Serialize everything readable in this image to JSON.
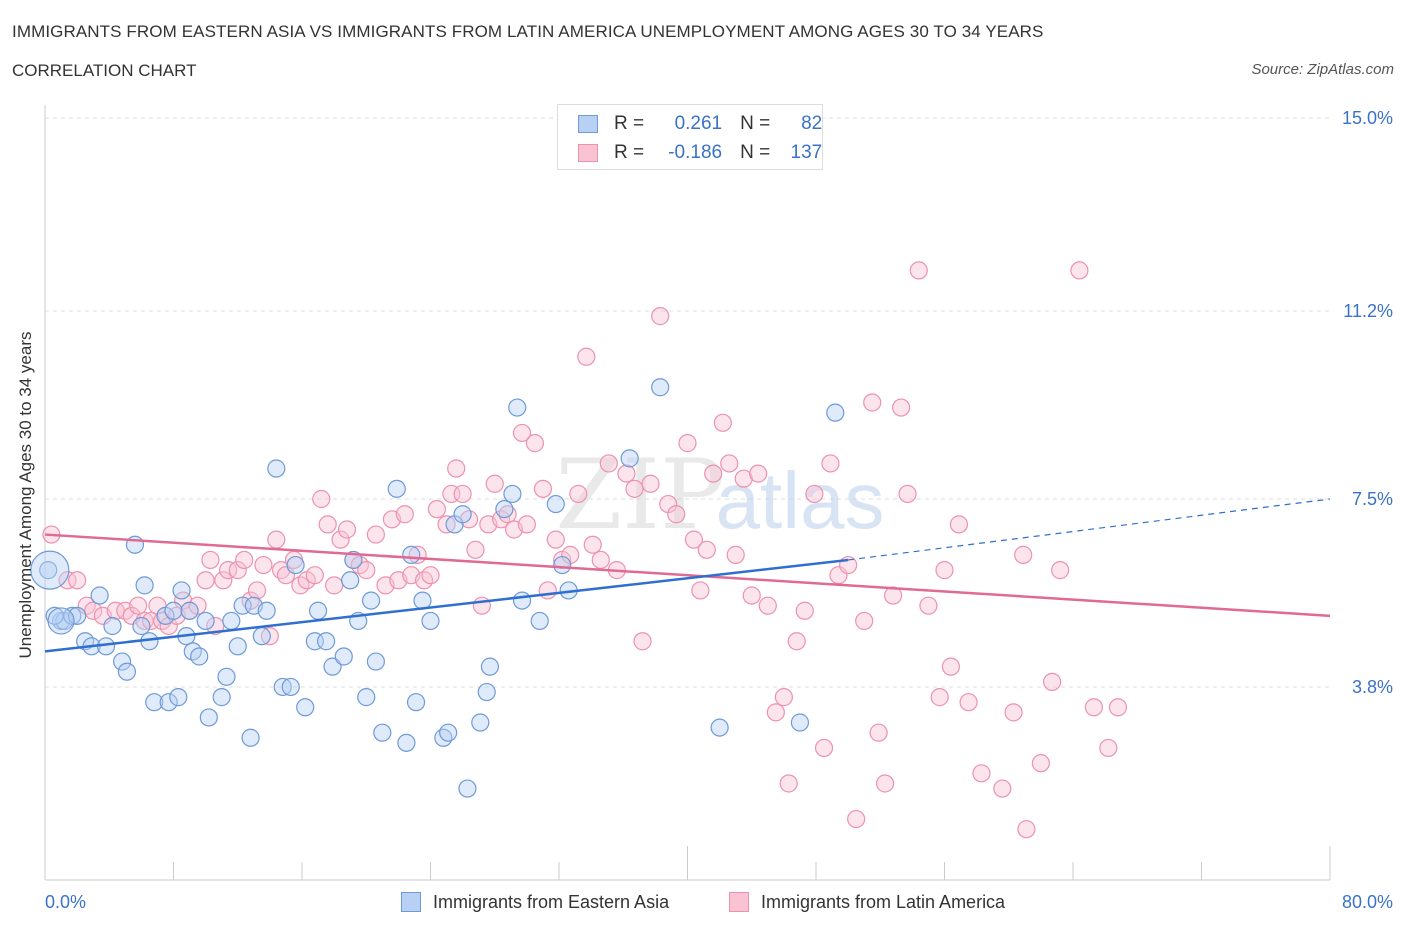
{
  "header": {
    "title": "IMMIGRANTS FROM EASTERN ASIA VS IMMIGRANTS FROM LATIN AMERICA UNEMPLOYMENT AMONG AGES 30 TO 34 YEARS",
    "subtitle": "CORRELATION CHART",
    "source": "Source: ZipAtlas.com"
  },
  "legend": {
    "rows": [
      {
        "r_label": "R =",
        "r_value": "0.261",
        "n_label": "N =",
        "n_value": "82"
      },
      {
        "r_label": "R =",
        "r_value": "-0.186",
        "n_label": "N =",
        "n_value": "137"
      }
    ]
  },
  "colors": {
    "blue_fill": "#b8d0f4",
    "blue_stroke": "#6e9ad8",
    "blue_line": "#2f6fcf",
    "pink_fill": "#f9c3d4",
    "pink_stroke": "#ec92ae",
    "pink_line": "#e06a94",
    "axis_text": "#3a72c8",
    "grid": "#dddddd"
  },
  "chart_data": {
    "type": "scatter",
    "xlabel": "",
    "ylabel": "Unemployment Among Ages 30 to 34 years",
    "xlim": [
      0,
      80
    ],
    "ylim": [
      0,
      15
    ],
    "x_tick_labels": [
      "0.0%",
      "80.0%"
    ],
    "y_ticks": [
      3.8,
      7.5,
      11.2,
      15.0
    ],
    "y_tick_labels": [
      "3.8%",
      "7.5%",
      "11.2%",
      "15.0%"
    ],
    "grid": "horizontal dashed",
    "watermark": {
      "zip": "ZIP",
      "atlas": "atlas"
    },
    "series": [
      {
        "name": "Immigrants from Eastern Asia",
        "trend": {
          "x": [
            0,
            50.0
          ],
          "y": [
            4.5,
            6.3
          ],
          "extended_x": [
            80,
            80
          ],
          "extended_y": [
            7.5,
            7.5
          ],
          "dashed_from": 50.0
        },
        "points": [
          [
            0.2,
            6.1
          ],
          [
            1.0,
            5.1
          ],
          [
            1.2,
            5.1
          ],
          [
            1.7,
            5.2
          ],
          [
            2.0,
            5.2
          ],
          [
            2.5,
            4.7
          ],
          [
            2.9,
            4.6
          ],
          [
            3.4,
            5.6
          ],
          [
            3.8,
            4.6
          ],
          [
            4.2,
            5.0
          ],
          [
            4.8,
            4.3
          ],
          [
            5.1,
            4.1
          ],
          [
            5.6,
            6.6
          ],
          [
            6.0,
            5.0
          ],
          [
            6.2,
            5.8
          ],
          [
            6.5,
            4.7
          ],
          [
            6.8,
            3.5
          ],
          [
            7.5,
            5.2
          ],
          [
            7.7,
            3.5
          ],
          [
            8.0,
            5.3
          ],
          [
            8.3,
            3.6
          ],
          [
            8.5,
            5.7
          ],
          [
            8.8,
            4.8
          ],
          [
            9.0,
            5.3
          ],
          [
            9.2,
            4.5
          ],
          [
            9.6,
            4.4
          ],
          [
            10.0,
            5.1
          ],
          [
            10.2,
            3.2
          ],
          [
            11.0,
            3.6
          ],
          [
            11.3,
            4.0
          ],
          [
            11.6,
            5.1
          ],
          [
            12.0,
            4.6
          ],
          [
            12.3,
            5.4
          ],
          [
            12.8,
            2.8
          ],
          [
            13.0,
            5.4
          ],
          [
            13.5,
            4.8
          ],
          [
            13.8,
            5.3
          ],
          [
            14.4,
            8.1
          ],
          [
            14.8,
            3.8
          ],
          [
            15.3,
            3.8
          ],
          [
            15.6,
            6.2
          ],
          [
            16.2,
            3.4
          ],
          [
            16.8,
            4.7
          ],
          [
            17.0,
            5.3
          ],
          [
            17.5,
            4.7
          ],
          [
            17.9,
            4.2
          ],
          [
            18.6,
            4.4
          ],
          [
            19.0,
            5.9
          ],
          [
            19.2,
            6.3
          ],
          [
            19.5,
            5.1
          ],
          [
            20.0,
            3.6
          ],
          [
            20.3,
            5.5
          ],
          [
            20.6,
            4.3
          ],
          [
            21.0,
            2.9
          ],
          [
            21.9,
            7.7
          ],
          [
            22.5,
            2.7
          ],
          [
            22.8,
            6.4
          ],
          [
            23.1,
            3.5
          ],
          [
            23.5,
            5.5
          ],
          [
            24.0,
            5.1
          ],
          [
            24.8,
            2.8
          ],
          [
            25.1,
            2.9
          ],
          [
            25.5,
            7.0
          ],
          [
            26.0,
            7.2
          ],
          [
            26.3,
            1.8
          ],
          [
            27.1,
            3.1
          ],
          [
            27.5,
            3.7
          ],
          [
            27.7,
            4.2
          ],
          [
            28.6,
            7.3
          ],
          [
            29.1,
            7.6
          ],
          [
            29.4,
            9.3
          ],
          [
            29.7,
            5.5
          ],
          [
            30.8,
            5.1
          ],
          [
            31.8,
            7.4
          ],
          [
            32.2,
            6.2
          ],
          [
            32.6,
            5.7
          ],
          [
            36.4,
            8.3
          ],
          [
            38.3,
            9.7
          ],
          [
            42.0,
            3.0
          ],
          [
            47.0,
            3.1
          ],
          [
            49.2,
            9.2
          ],
          [
            0.6,
            5.2
          ]
        ],
        "large_points": [
          [
            0.3,
            6.1
          ],
          [
            1.0,
            5.1
          ]
        ]
      },
      {
        "name": "Immigrants from Latin America",
        "trend": {
          "x": [
            0,
            80
          ],
          "y": [
            6.8,
            5.2
          ]
        },
        "points": [
          [
            0.4,
            6.8
          ],
          [
            1.4,
            5.9
          ],
          [
            2.0,
            5.9
          ],
          [
            2.6,
            5.4
          ],
          [
            3.0,
            5.3
          ],
          [
            3.6,
            5.2
          ],
          [
            4.4,
            5.3
          ],
          [
            5.0,
            5.3
          ],
          [
            5.4,
            5.2
          ],
          [
            5.8,
            5.4
          ],
          [
            6.2,
            5.1
          ],
          [
            6.6,
            5.1
          ],
          [
            7.0,
            5.4
          ],
          [
            7.3,
            5.1
          ],
          [
            7.7,
            5.0
          ],
          [
            8.2,
            5.2
          ],
          [
            8.6,
            5.5
          ],
          [
            9.0,
            5.3
          ],
          [
            9.5,
            5.4
          ],
          [
            10.0,
            5.9
          ],
          [
            10.3,
            6.3
          ],
          [
            10.6,
            5.0
          ],
          [
            11.1,
            5.9
          ],
          [
            11.4,
            6.1
          ],
          [
            12.0,
            6.1
          ],
          [
            12.4,
            6.3
          ],
          [
            12.8,
            5.5
          ],
          [
            13.2,
            5.7
          ],
          [
            13.6,
            6.2
          ],
          [
            14.0,
            4.8
          ],
          [
            14.4,
            6.7
          ],
          [
            14.7,
            6.1
          ],
          [
            15.0,
            6.0
          ],
          [
            15.5,
            6.3
          ],
          [
            15.9,
            5.8
          ],
          [
            16.3,
            5.9
          ],
          [
            16.8,
            6.0
          ],
          [
            17.2,
            7.5
          ],
          [
            17.6,
            7.0
          ],
          [
            18.0,
            5.8
          ],
          [
            18.4,
            6.7
          ],
          [
            18.8,
            6.9
          ],
          [
            19.2,
            6.3
          ],
          [
            19.6,
            6.2
          ],
          [
            20.0,
            6.1
          ],
          [
            20.6,
            6.8
          ],
          [
            21.2,
            5.8
          ],
          [
            21.6,
            7.1
          ],
          [
            22.0,
            5.9
          ],
          [
            22.4,
            7.2
          ],
          [
            22.8,
            6.0
          ],
          [
            23.2,
            6.4
          ],
          [
            23.6,
            5.9
          ],
          [
            24.0,
            6.0
          ],
          [
            24.4,
            7.3
          ],
          [
            25.0,
            7.0
          ],
          [
            25.3,
            7.6
          ],
          [
            25.6,
            8.1
          ],
          [
            26.0,
            7.6
          ],
          [
            26.4,
            7.1
          ],
          [
            26.8,
            6.5
          ],
          [
            27.2,
            5.4
          ],
          [
            27.6,
            7.0
          ],
          [
            28.0,
            7.8
          ],
          [
            28.4,
            7.1
          ],
          [
            28.8,
            7.2
          ],
          [
            29.2,
            6.9
          ],
          [
            29.7,
            8.8
          ],
          [
            30.0,
            7.0
          ],
          [
            30.5,
            8.6
          ],
          [
            31.0,
            7.7
          ],
          [
            31.3,
            5.7
          ],
          [
            31.8,
            6.7
          ],
          [
            32.2,
            6.3
          ],
          [
            32.7,
            6.4
          ],
          [
            33.2,
            7.6
          ],
          [
            33.7,
            10.3
          ],
          [
            34.1,
            6.6
          ],
          [
            34.6,
            6.3
          ],
          [
            35.1,
            8.2
          ],
          [
            35.6,
            6.1
          ],
          [
            36.2,
            8.0
          ],
          [
            36.7,
            7.7
          ],
          [
            37.2,
            4.7
          ],
          [
            37.7,
            7.8
          ],
          [
            38.3,
            11.1
          ],
          [
            38.8,
            7.4
          ],
          [
            39.3,
            7.2
          ],
          [
            40.0,
            8.6
          ],
          [
            40.4,
            6.7
          ],
          [
            40.8,
            5.7
          ],
          [
            41.2,
            6.5
          ],
          [
            41.6,
            8.0
          ],
          [
            42.2,
            9.0
          ],
          [
            42.6,
            8.2
          ],
          [
            43.0,
            6.4
          ],
          [
            43.5,
            7.9
          ],
          [
            44.0,
            5.6
          ],
          [
            44.4,
            8.0
          ],
          [
            45.0,
            5.4
          ],
          [
            45.5,
            3.3
          ],
          [
            46.0,
            3.6
          ],
          [
            46.3,
            1.9
          ],
          [
            46.8,
            4.7
          ],
          [
            47.3,
            5.3
          ],
          [
            47.9,
            7.6
          ],
          [
            48.5,
            2.6
          ],
          [
            48.9,
            8.2
          ],
          [
            49.4,
            6.0
          ],
          [
            50.0,
            6.2
          ],
          [
            50.5,
            1.2
          ],
          [
            51.0,
            5.1
          ],
          [
            51.5,
            9.4
          ],
          [
            51.9,
            2.9
          ],
          [
            52.3,
            1.9
          ],
          [
            52.8,
            5.6
          ],
          [
            53.3,
            9.3
          ],
          [
            53.7,
            7.6
          ],
          [
            54.4,
            12.0
          ],
          [
            55.0,
            5.4
          ],
          [
            55.7,
            3.6
          ],
          [
            56.0,
            6.1
          ],
          [
            56.4,
            4.2
          ],
          [
            56.9,
            7.0
          ],
          [
            57.5,
            3.5
          ],
          [
            58.3,
            2.1
          ],
          [
            59.6,
            1.8
          ],
          [
            60.3,
            3.3
          ],
          [
            60.9,
            6.4
          ],
          [
            61.1,
            1.0
          ],
          [
            62.0,
            2.3
          ],
          [
            62.7,
            3.9
          ],
          [
            63.2,
            6.1
          ],
          [
            64.4,
            12.0
          ],
          [
            65.3,
            3.4
          ],
          [
            66.2,
            2.6
          ],
          [
            66.8,
            3.4
          ]
        ]
      }
    ]
  },
  "bottom_legend": {
    "items": [
      "Immigrants from Eastern Asia",
      "Immigrants from Latin America"
    ]
  }
}
